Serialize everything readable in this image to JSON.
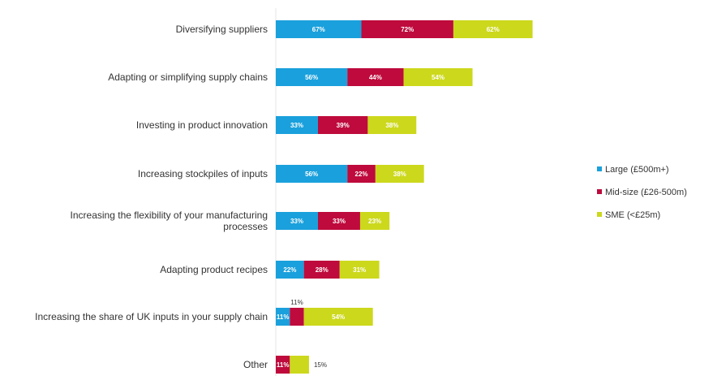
{
  "colors": {
    "large": "#1aa0dc",
    "mid": "#be0a3c",
    "sme": "#ccd81c"
  },
  "chart_data": {
    "type": "bar",
    "orientation": "horizontal",
    "stacked": true,
    "categories": [
      [
        "Diversifying suppliers"
      ],
      [
        "Adapting or simplifying supply chains"
      ],
      [
        "Investing in product innovation"
      ],
      [
        "Increasing stockpiles of inputs"
      ],
      [
        "Increasing the flexibility of your manufacturing",
        "processes"
      ],
      [
        "Adapting product recipes"
      ],
      [
        "Increasing the share of UK inputs in your supply chain"
      ],
      [
        "Other"
      ]
    ],
    "series": [
      {
        "name": "Large (£500m+)",
        "color_key": "large",
        "values": [
          67,
          56,
          33,
          56,
          33,
          22,
          11,
          0
        ],
        "labels": [
          "67%",
          "56%",
          "33%",
          "56%",
          "33%",
          "22%",
          "11%",
          ""
        ]
      },
      {
        "name": "Mid-size (£26-500m)",
        "color_key": "mid",
        "values": [
          72,
          44,
          39,
          22,
          33,
          28,
          11,
          11
        ],
        "labels": [
          "72%",
          "44%",
          "39%",
          "22%",
          "33%",
          "28%",
          "11%",
          "11%"
        ]
      },
      {
        "name": "SME (<£25m)",
        "color_key": "sme",
        "values": [
          62,
          54,
          38,
          38,
          23,
          31,
          54,
          15
        ],
        "labels": [
          "62%",
          "54%",
          "38%",
          "38%",
          "23%",
          "31%",
          "54%",
          "15%"
        ]
      }
    ],
    "legend_position": "right",
    "grid": false
  }
}
